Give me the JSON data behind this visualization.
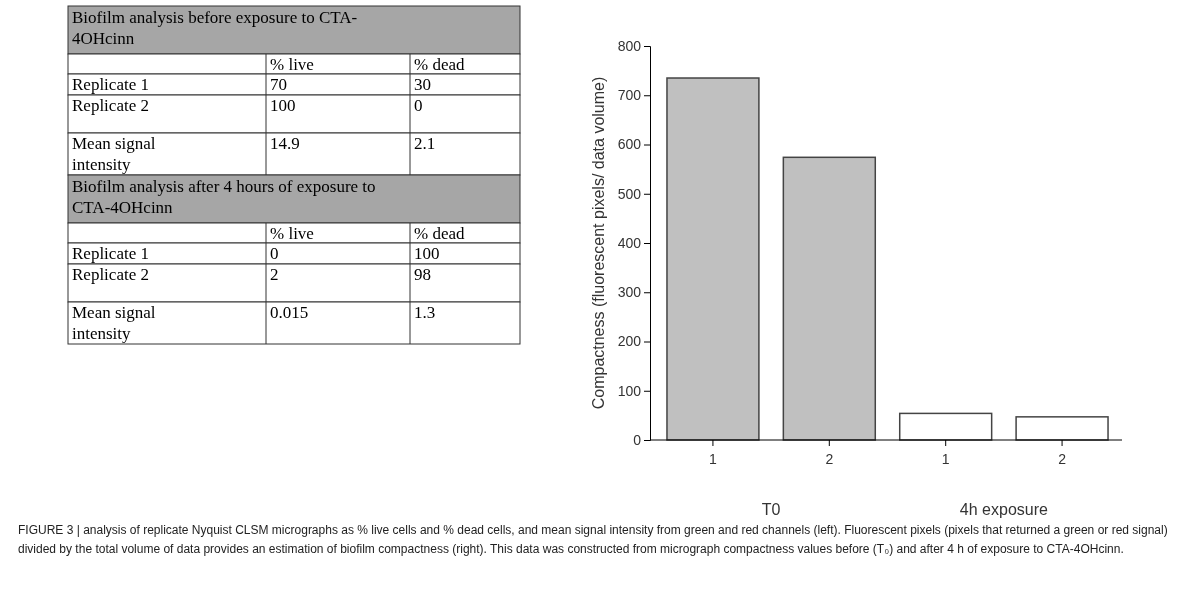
{
  "chart_data": [
    {
      "type": "other",
      "title": "Biofilm analysis before exposure to CTA-4OHcinn",
      "subtitle": "Biofilm analysis after 4 hours of exposure to CTA-4OHcinn",
      "categories": [
        "% live",
        "% dead"
      ],
      "y_categories": [
        "Replicate 1",
        "Replicate 2",
        "Mean signal intensity",
        "Replicate 1",
        "Replicate 2",
        "Mean signal intensity"
      ],
      "cell_labels": [
        [
          "70",
          "30"
        ],
        [
          "100",
          "0"
        ],
        [
          "14.9",
          "2.1"
        ],
        [
          "0",
          "100"
        ],
        [
          "2",
          "98"
        ],
        [
          "0.015",
          "1.3"
        ]
      ],
      "annotations": [
        "FIGURE 3 | analysis of replicate Nyquist CLSM micrographs as % live cells and % dead cells, and mean signal intensity from green and red channels (left). Fluorescent pixels (pixels that returned a green or red signal) divided by the total volume of data provides an estimation of biofilm compactness (right). This data was constructed from micrograph compactness values before (T₀) and after 4 h of exposure to CTA-4OHcinn."
      ]
    },
    {
      "type": "bar",
      "ylabel": "Compactness (fluorescent pixels/ data volume)",
      "categories": [
        "1",
        "2",
        "1",
        "2"
      ],
      "values": [
        735,
        574,
        54,
        47
      ],
      "colors": [
        "#c0c0c0",
        "#c0c0c0",
        "#ffffff",
        "#ffffff"
      ],
      "ylim": [
        0,
        800
      ],
      "yticks": [
        0,
        100,
        200,
        300,
        400,
        500,
        600,
        700,
        800
      ],
      "grid": false,
      "annotations": [
        "T0",
        "4h exposure"
      ]
    }
  ]
}
